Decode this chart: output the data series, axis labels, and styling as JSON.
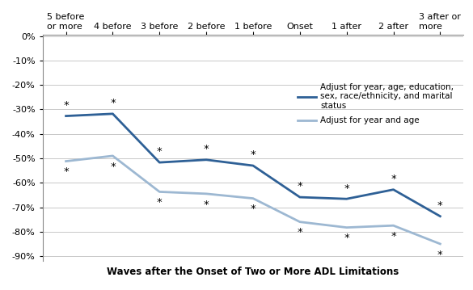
{
  "x_labels": [
    "5 before\nor more",
    "4 before",
    "3 before",
    "2 before",
    "1 before",
    "Onset",
    "1 after",
    "2 after",
    "3 after or\nmore"
  ],
  "series1_name": "Adjust for year, age, education,\nsex, race/ethnicity, and marital\nstatus",
  "series1_values": [
    -0.327,
    -0.318,
    -0.517,
    -0.506,
    -0.53,
    -0.659,
    -0.666,
    -0.628,
    -0.737
  ],
  "series1_color": "#2E6096",
  "series1_linewidth": 2.0,
  "series2_name": "Adjust for year and age",
  "series2_values": [
    -0.512,
    -0.49,
    -0.637,
    -0.645,
    -0.664,
    -0.76,
    -0.783,
    -0.775,
    -0.85
  ],
  "series2_color": "#9DB8D2",
  "series2_linewidth": 2.0,
  "ylim": [
    -0.92,
    0.005
  ],
  "yticks": [
    0.0,
    -0.1,
    -0.2,
    -0.3,
    -0.4,
    -0.5,
    -0.6,
    -0.7,
    -0.8,
    -0.9
  ],
  "ytick_labels": [
    "0%",
    "-10%",
    "-20%",
    "-30%",
    "-40%",
    "-50%",
    "-60%",
    "-70%",
    "-80%",
    "-90%"
  ],
  "xlabel": "Waves after the Onset of Two or More ADL Limitations",
  "background_color": "#FFFFFF",
  "grid_color": "#C8C8C8",
  "star_s1_above": [
    0,
    1,
    2,
    3,
    4,
    5,
    6,
    7,
    8
  ],
  "star_s2_below": [
    0,
    1,
    2,
    3,
    4,
    5,
    6,
    7,
    8
  ],
  "legend_fontsize": 7.5,
  "tick_fontsize": 8.0,
  "xlabel_fontsize": 8.5
}
